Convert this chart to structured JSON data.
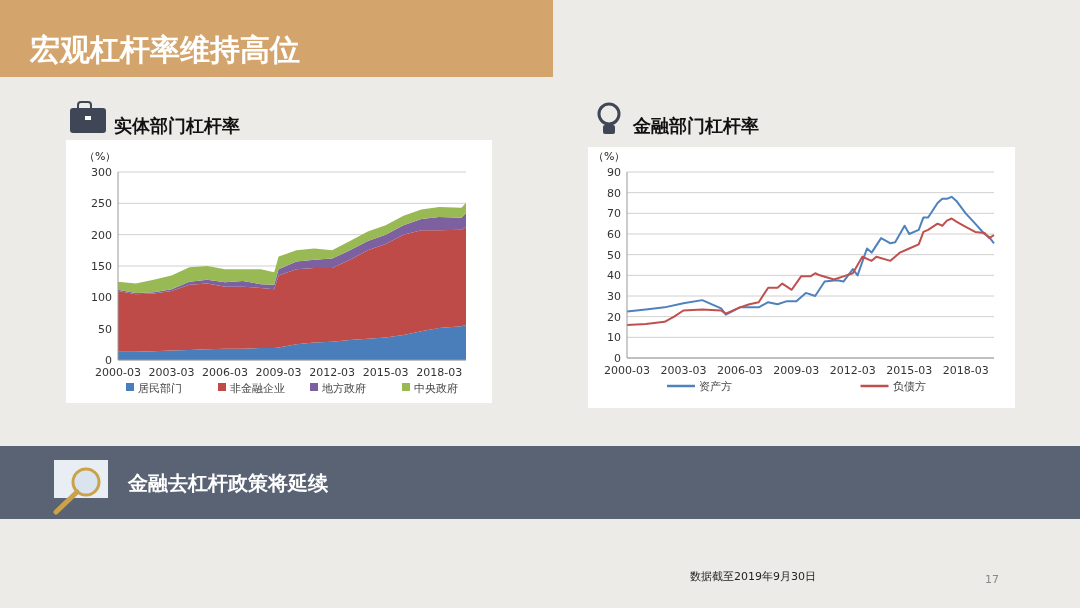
{
  "chart_data": [
    {
      "type": "area",
      "stacked": true,
      "title": "实体部门杠杆率",
      "ylabel": "（%）",
      "x": [
        "2000-03",
        "2001-03",
        "2002-03",
        "2003-03",
        "2004-03",
        "2005-03",
        "2006-03",
        "2007-03",
        "2008-03",
        "2008-12",
        "2009-03",
        "2010-03",
        "2011-03",
        "2012-03",
        "2013-03",
        "2014-03",
        "2015-03",
        "2016-03",
        "2017-03",
        "2018-03",
        "2019-06",
        "2019-09"
      ],
      "xlim": [
        "2000-03",
        "2019-09"
      ],
      "xticks": [
        "2000-03",
        "2003-03",
        "2006-03",
        "2009-03",
        "2012-03",
        "2015-03",
        "2018-03"
      ],
      "ylim": [
        0,
        300
      ],
      "yticks": [
        0,
        50,
        100,
        150,
        200,
        250,
        300
      ],
      "grid": "y",
      "legend": "bottom",
      "series": [
        {
          "name": "居民部门",
          "color": "#4a7ebb",
          "values": [
            13,
            13,
            14,
            15,
            16,
            17,
            18,
            18,
            19,
            19,
            20,
            25,
            28,
            29,
            32,
            34,
            36,
            40,
            46,
            51,
            54,
            56
          ]
        },
        {
          "name": "非金融企业",
          "color": "#be4b48",
          "values": [
            97,
            92,
            92,
            95,
            104,
            105,
            99,
            99,
            96,
            94,
            115,
            120,
            119,
            118,
            128,
            141,
            149,
            160,
            161,
            156,
            154,
            156
          ]
        },
        {
          "name": "地方政府",
          "color": "#7d60a0",
          "values": [
            2,
            2,
            2,
            3,
            5,
            6,
            7,
            9,
            6,
            7,
            10,
            12,
            13,
            15,
            15,
            15,
            15,
            15,
            18,
            21,
            19,
            22
          ]
        },
        {
          "name": "中央政府",
          "color": "#98b954",
          "values": [
            13,
            15,
            20,
            22,
            23,
            22,
            21,
            19,
            24,
            20,
            20,
            18,
            18,
            13,
            15,
            15,
            15,
            15,
            15,
            16,
            16,
            17
          ]
        }
      ]
    },
    {
      "type": "line",
      "title": "金融部门杠杆率",
      "ylabel": "（%）",
      "xlim": [
        "2000-03",
        "2019-09"
      ],
      "xticks": [
        "2000-03",
        "2003-03",
        "2006-03",
        "2009-03",
        "2012-03",
        "2015-03",
        "2018-03"
      ],
      "ylim": [
        0,
        90
      ],
      "yticks": [
        0,
        10,
        20,
        30,
        40,
        50,
        60,
        70,
        80,
        90
      ],
      "grid": "y",
      "legend": "bottom",
      "series": [
        {
          "name": "资产方",
          "color": "#4f81bd",
          "x": [
            "2000-03",
            "2001-03",
            "2002-03",
            "2003-03",
            "2004-03",
            "2005-03",
            "2005-06",
            "2006-03",
            "2007-03",
            "2007-09",
            "2008-03",
            "2008-09",
            "2009-03",
            "2009-09",
            "2010-03",
            "2010-09",
            "2011-03",
            "2011-06",
            "2011-09",
            "2012-03",
            "2012-06",
            "2012-12",
            "2013-03",
            "2013-09",
            "2014-03",
            "2014-06",
            "2014-12",
            "2015-03",
            "2015-09",
            "2015-12",
            "2016-03",
            "2016-09",
            "2016-12",
            "2017-03",
            "2017-06",
            "2017-09",
            "2018-03",
            "2018-09",
            "2019-03",
            "2019-06",
            "2019-09"
          ],
          "values": [
            22.5,
            23.5,
            24.5,
            26.5,
            28,
            24,
            21,
            24.5,
            24.5,
            27,
            26,
            27.5,
            27.5,
            31.5,
            30,
            37,
            37.5,
            37.5,
            37,
            43,
            40,
            53,
            51,
            58,
            55.5,
            56,
            64,
            60,
            62,
            68,
            68,
            75,
            77,
            77,
            78,
            76,
            70,
            65,
            60,
            58.5,
            55.5
          ]
        },
        {
          "name": "负债方",
          "color": "#c0504d",
          "x": [
            "2000-03",
            "2001-03",
            "2002-03",
            "2002-09",
            "2003-03",
            "2004-03",
            "2005-03",
            "2005-06",
            "2006-03",
            "2006-09",
            "2007-03",
            "2007-09",
            "2008-03",
            "2008-06",
            "2008-12",
            "2009-06",
            "2009-12",
            "2010-03",
            "2010-06",
            "2011-03",
            "2011-09",
            "2012-03",
            "2012-09",
            "2013-03",
            "2013-06",
            "2014-03",
            "2014-09",
            "2015-03",
            "2015-09",
            "2015-12",
            "2016-03",
            "2016-09",
            "2016-12",
            "2017-03",
            "2017-06",
            "2017-09",
            "2018-03",
            "2018-09",
            "2019-03",
            "2019-06",
            "2019-09"
          ],
          "values": [
            16,
            16.5,
            17.5,
            20,
            23,
            23.5,
            23,
            21.5,
            24.5,
            26,
            27,
            34,
            34,
            36,
            33,
            39.5,
            39.5,
            41,
            40,
            38,
            39.5,
            41,
            49,
            47,
            49,
            47,
            51,
            53,
            55,
            61,
            62,
            65,
            64,
            66.5,
            67.5,
            66,
            63.5,
            61,
            60.5,
            58,
            59.5
          ]
        }
      ]
    },
    {
      "type": "other",
      "title": "宏观杠杆率维持高位",
      "annotations": [
        "金融去杠杆政策将延续",
        "数据截至2019年9月30日",
        "17"
      ]
    }
  ]
}
